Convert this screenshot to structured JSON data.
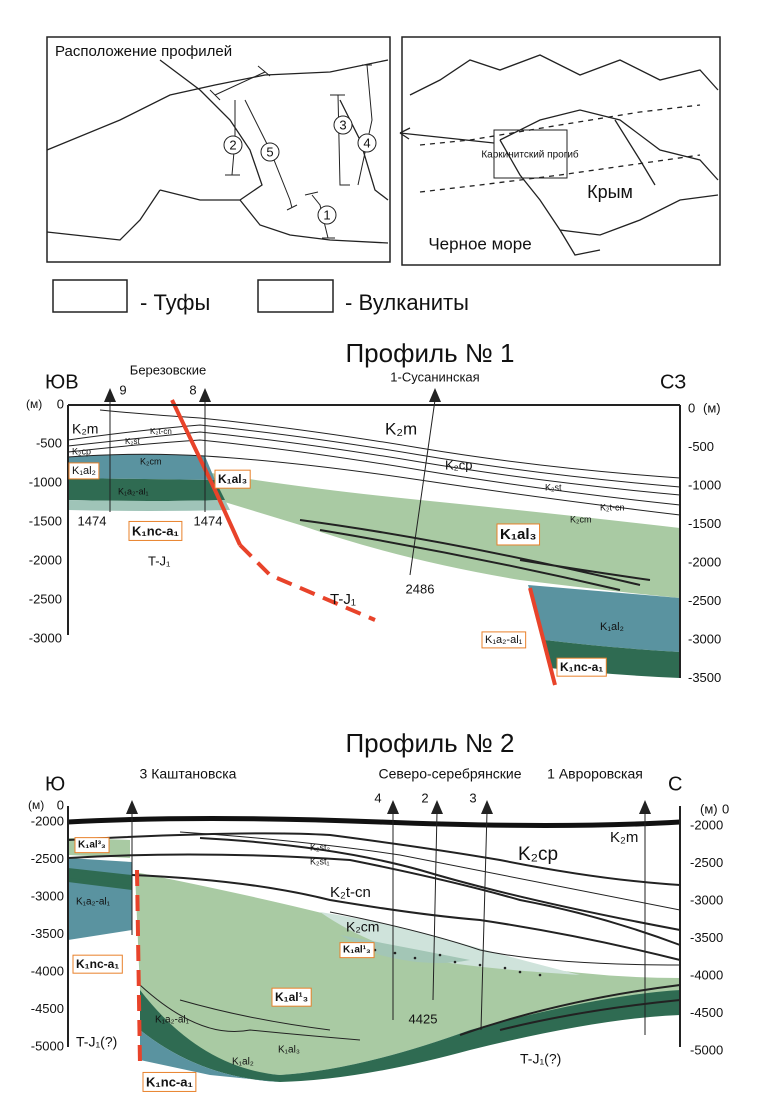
{
  "map": {
    "title": "Расположение профилей",
    "profiles": [
      "1",
      "2",
      "3",
      "4",
      "5"
    ],
    "trough": "Каркинитский прогиб",
    "crimea": "Крым",
    "sea": "Черное море"
  },
  "legend": {
    "items": [
      "- Туфы",
      "- Вулканиты"
    ]
  },
  "profile1": {
    "title": "Профиль № 1",
    "left_dir": "ЮВ",
    "right_dir": "СЗ",
    "unit": "(м)",
    "left_ticks": [
      "0",
      "-500",
      "-1000",
      "-1500",
      "-2000",
      "-2500",
      "-3000"
    ],
    "right_ticks": [
      "0",
      "-500",
      "-1000",
      "-1500",
      "-2000",
      "-2500",
      "-3000",
      "-3500"
    ],
    "wells": [
      "Березовские",
      "9",
      "8",
      "1-Сусанинская"
    ],
    "depths": [
      "1474",
      "1474",
      "2486"
    ],
    "formations": [
      "K₂m",
      "K₂cp",
      "K₂st",
      "K₂t-cn",
      "K₂cm",
      "K₁al₂",
      "K₁a₂-al₁",
      "K₁nc-a₁",
      "K₁al₃",
      "T-J₁",
      "K₂m",
      "K₂cp",
      "K₂st",
      "K₂t-cn",
      "K₂cm",
      "K₁al₃",
      "T-J₁",
      "K₁a₂-al₁",
      "K₁al₂",
      "K₁nc-a₁",
      "K₁al₃"
    ]
  },
  "profile2": {
    "title": "Профиль № 2",
    "left_dir": "Ю",
    "right_dir": "С",
    "unit": "(м)",
    "left_ticks": [
      "0",
      "-2000",
      "-2500",
      "-3000",
      "-3500",
      "-4000",
      "-4500",
      "-5000"
    ],
    "right_ticks": [
      "0",
      "-2000",
      "-2500",
      "-3000",
      "-3500",
      "-4000",
      "-4500",
      "-5000"
    ],
    "wells": [
      "3 Каштановска",
      "Северо-серебрянские",
      "4",
      "2",
      "3",
      "1 Авроровская"
    ],
    "depths": [
      "4425"
    ],
    "formations": [
      "K₂m",
      "K₂cp",
      "K₂st₂",
      "K₂st₁",
      "K₂t-cn",
      "K₂cm",
      "K₁al³₃",
      "K₁al¹₃",
      "K₁al₃",
      "K₁al¹₃",
      "K₁a₂-al₁",
      "K₁nc-a₁",
      "K₁a₂-al₁",
      "K₁al₂",
      "K₁nc-a₁",
      "T-J₁(?)",
      "T-J₁(?)"
    ]
  }
}
